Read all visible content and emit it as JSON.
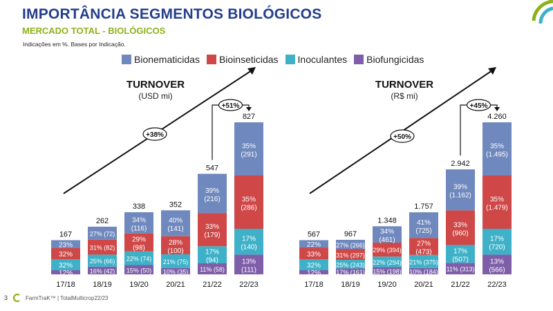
{
  "header": {
    "title": "IMPORTÂNCIA SEGMENTOS BIOLÓGICOS",
    "subtitle": "MERCADO TOTAL - BIOLÓGICOS",
    "note": "Indicações em %. Bases por Indicação."
  },
  "legend": [
    {
      "label": "Bionematicidas",
      "color": "#6f88bd"
    },
    {
      "label": "Bioinseticidas",
      "color": "#cf4747"
    },
    {
      "label": "Inoculantes",
      "color": "#3eb1c8"
    },
    {
      "label": "Biofungicidas",
      "color": "#7e5ea9"
    }
  ],
  "footer": {
    "page": "3",
    "brand": "FarmTraK™ | TotalMulticrop22/23"
  },
  "chart_data": [
    {
      "type": "bar",
      "stacked": true,
      "title": "TURNOVER",
      "unit_label": "(USD mi)",
      "categories": [
        "17/18",
        "18/19",
        "19/20",
        "20/21",
        "21/22",
        "22/23"
      ],
      "totals": [
        "167",
        "262",
        "338",
        "352",
        "547",
        "827"
      ],
      "totals_num": [
        167,
        262,
        338,
        352,
        547,
        827
      ],
      "growth_arrow_label": "+38%",
      "bracket_label": "+51%",
      "series": [
        {
          "name": "Biofungicidas",
          "color": "#7e5ea9",
          "pct": [
            12,
            16,
            15,
            10,
            11,
            13
          ],
          "pct_labels": [
            "12%",
            "16%",
            "15%",
            "10%",
            "11%",
            "13%"
          ],
          "abs_labels": [
            "",
            "(42)",
            "(50)",
            "(35)",
            "(58)",
            "(111)"
          ]
        },
        {
          "name": "Inoculantes",
          "color": "#3eb1c8",
          "pct": [
            32,
            25,
            22,
            21,
            17,
            17
          ],
          "pct_labels": [
            "32%",
            "25%",
            "22%",
            "21%",
            "17%",
            "17%"
          ],
          "abs_labels": [
            "",
            "(66)",
            "(74)",
            "(75)",
            "(94)",
            "(140)"
          ]
        },
        {
          "name": "Bioinseticidas",
          "color": "#cf4747",
          "pct": [
            32,
            31,
            29,
            28,
            33,
            35
          ],
          "pct_labels": [
            "32%",
            "31%",
            "29%",
            "28%",
            "33%",
            "35%"
          ],
          "abs_labels": [
            "",
            "(82)",
            "(98)",
            "(100)",
            "(179)",
            "(286)"
          ]
        },
        {
          "name": "Bionematicidas",
          "color": "#6f88bd",
          "pct": [
            23,
            27,
            34,
            40,
            39,
            35
          ],
          "pct_labels": [
            "23%",
            "27%",
            "34%",
            "40%",
            "39%",
            "35%"
          ],
          "abs_labels": [
            "",
            "(72)",
            "(116)",
            "(141)",
            "(216)",
            "(291)"
          ]
        }
      ]
    },
    {
      "type": "bar",
      "stacked": true,
      "title": "TURNOVER",
      "unit_label": "(R$ mi)",
      "categories": [
        "17/18",
        "18/19",
        "19/20",
        "20/21",
        "21/22",
        "22/23"
      ],
      "totals": [
        "567",
        "967",
        "1.348",
        "1.757",
        "2.942",
        "4.260"
      ],
      "totals_num": [
        567,
        967,
        1348,
        1757,
        2942,
        4260
      ],
      "growth_arrow_label": "+50%",
      "bracket_label": "+45%",
      "series": [
        {
          "name": "Biofungicidas",
          "color": "#7e5ea9",
          "pct": [
            12,
            17,
            15,
            10,
            11,
            13
          ],
          "pct_labels": [
            "12%",
            "17%",
            "15%",
            "10%",
            "11%",
            "13%"
          ],
          "abs_labels": [
            "",
            "(161)",
            "(198)",
            "(184)",
            "(313)",
            "(566)"
          ]
        },
        {
          "name": "Inoculantes",
          "color": "#3eb1c8",
          "pct": [
            32,
            25,
            22,
            21,
            17,
            17
          ],
          "pct_labels": [
            "32%",
            "25%",
            "22%",
            "21%",
            "17%",
            "17%"
          ],
          "abs_labels": [
            "",
            "(243)",
            "(294)",
            "(375)",
            "(507)",
            "(720)"
          ]
        },
        {
          "name": "Bioinseticidas",
          "color": "#cf4747",
          "pct": [
            33,
            31,
            29,
            27,
            33,
            35
          ],
          "pct_labels": [
            "33%",
            "31%",
            "29%",
            "27%",
            "33%",
            "35%"
          ],
          "abs_labels": [
            "",
            "(297)",
            "(394)",
            "(473)",
            "(960)",
            "(1.479)"
          ]
        },
        {
          "name": "Bionematicidas",
          "color": "#6f88bd",
          "pct": [
            22,
            27,
            34,
            41,
            39,
            35
          ],
          "pct_labels": [
            "22%",
            "27%",
            "34%",
            "41%",
            "39%",
            "35%"
          ],
          "abs_labels": [
            "",
            "(266)",
            "(461)",
            "(725)",
            "(1.162)",
            "(1.495)"
          ]
        }
      ]
    }
  ]
}
